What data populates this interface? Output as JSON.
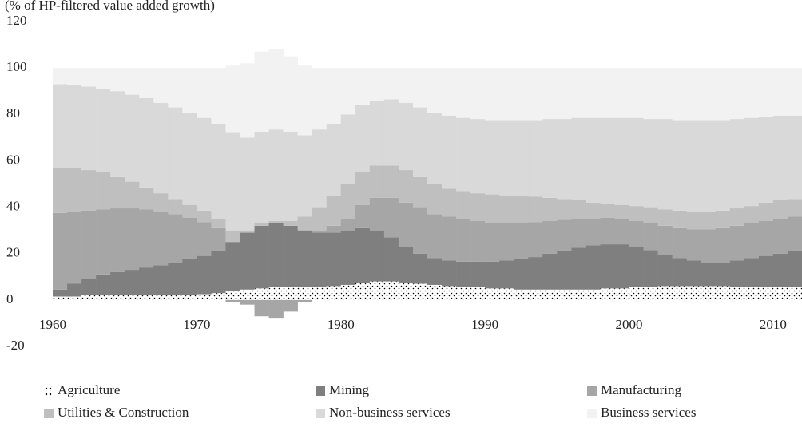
{
  "chart_data": {
    "type": "stacked-bar",
    "title": "(% of HP-filtered value added growth)",
    "x": [
      1960,
      1961,
      1962,
      1963,
      1964,
      1965,
      1966,
      1967,
      1968,
      1969,
      1970,
      1971,
      1972,
      1973,
      1974,
      1975,
      1976,
      1977,
      1978,
      1979,
      1980,
      1981,
      1982,
      1983,
      1984,
      1985,
      1986,
      1987,
      1988,
      1989,
      1990,
      1991,
      1992,
      1993,
      1994,
      1995,
      1996,
      1997,
      1998,
      1999,
      2000,
      2001,
      2002,
      2003,
      2004,
      2005,
      2006,
      2007,
      2008,
      2009,
      2010,
      2011
    ],
    "xlim": [
      1960,
      2012
    ],
    "xticks": [
      1960,
      1970,
      1980,
      1990,
      2000,
      2010
    ],
    "ylim": [
      -20,
      120
    ],
    "yticks": [
      -20,
      0,
      20,
      40,
      60,
      80,
      100,
      120
    ],
    "series": [
      {
        "name": "Agriculture",
        "color": "#ffffff",
        "pattern": "dots",
        "values": [
          1.5,
          1.5,
          2,
          2,
          2,
          2,
          2,
          2,
          2,
          2,
          2.5,
          3,
          4,
          4.5,
          5,
          5.5,
          5.5,
          5.5,
          5.5,
          6,
          6.5,
          7.5,
          8,
          8,
          7.5,
          7,
          6.5,
          6,
          5.5,
          5.5,
          5,
          5,
          4.5,
          4.5,
          4.5,
          4.5,
          4.5,
          4.5,
          5,
          5,
          5.5,
          5.5,
          6,
          6,
          6,
          6,
          6,
          5.5,
          5.5,
          5.5,
          5.5,
          5.5
        ]
      },
      {
        "name": "Mining",
        "color": "#7f7f7f",
        "values": [
          3,
          5.5,
          7,
          9,
          10,
          11,
          12,
          13,
          14,
          15.5,
          16.5,
          18,
          21,
          24.5,
          27,
          27.5,
          26.5,
          24.5,
          23.5,
          23,
          23.5,
          23.5,
          22,
          19,
          15.5,
          13,
          11.5,
          11,
          11,
          11,
          11.5,
          12,
          13,
          14,
          15.5,
          16.5,
          18,
          19,
          19,
          19,
          17.5,
          16,
          13.5,
          12,
          11,
          10,
          10,
          11.5,
          12.5,
          13.5,
          14.5,
          15.5
        ]
      },
      {
        "name": "Manufacturing",
        "color": "#a6a6a6",
        "values": [
          33,
          31,
          29.5,
          28,
          27.5,
          26.5,
          25,
          23,
          21,
          18,
          14.5,
          10,
          -1,
          -2,
          -7,
          -8,
          -5,
          -1,
          1,
          3,
          5,
          10,
          14,
          17,
          19,
          20,
          19,
          19,
          18.5,
          17.5,
          16.5,
          16,
          15.5,
          15,
          14,
          13.5,
          12.5,
          11.5,
          11.5,
          11,
          11,
          11.5,
          12.5,
          13,
          13.5,
          14.5,
          15,
          15,
          15,
          15,
          15,
          15
        ]
      },
      {
        "name": "Utilities & Construction",
        "color": "#bfbfbf",
        "values": [
          19.5,
          19,
          17.5,
          16,
          13.5,
          11.5,
          9.5,
          8,
          6.5,
          5.5,
          5,
          4,
          5,
          1,
          1,
          1,
          2,
          6,
          10,
          13,
          15,
          14,
          14,
          14,
          14,
          13,
          13,
          12,
          12,
          12,
          12.5,
          12,
          12,
          11,
          10,
          9,
          8,
          7,
          6,
          6,
          6.5,
          7,
          7,
          7.5,
          7.5,
          7.5,
          7.5,
          7.5,
          7.5,
          8,
          8,
          7.5
        ]
      },
      {
        "name": "Non-business services",
        "color": "#d9d9d9",
        "values": [
          36,
          35.5,
          36,
          36,
          37,
          37.5,
          38.5,
          39,
          39.5,
          39.5,
          40,
          41,
          42,
          40,
          39.5,
          39.5,
          38.5,
          35,
          33.5,
          31,
          30,
          29,
          28,
          28.5,
          29,
          30,
          30.5,
          31.5,
          31.5,
          32,
          32,
          32.5,
          32.5,
          33,
          34,
          34.5,
          35.5,
          36.5,
          37,
          37.5,
          38,
          38,
          39,
          39,
          39.5,
          39.5,
          39,
          38.5,
          38,
          37,
          36.5,
          36
        ]
      },
      {
        "name": "Business services",
        "color": "#f2f2f2",
        "values": [
          7,
          7.5,
          8,
          9,
          10,
          11.5,
          13,
          15,
          17,
          19.5,
          21.5,
          24,
          29,
          32,
          34.5,
          34.5,
          32.5,
          30,
          26.5,
          24,
          20,
          16,
          14,
          13.5,
          15,
          17,
          19.5,
          20.5,
          21.5,
          22,
          22.5,
          22.5,
          22.5,
          22.5,
          22,
          22,
          21.5,
          21.5,
          21.5,
          21.5,
          21.5,
          22,
          22,
          22.5,
          22.5,
          22.5,
          22.5,
          22,
          21.5,
          21,
          20.5,
          20.5
        ]
      }
    ],
    "legend": "bottom"
  }
}
